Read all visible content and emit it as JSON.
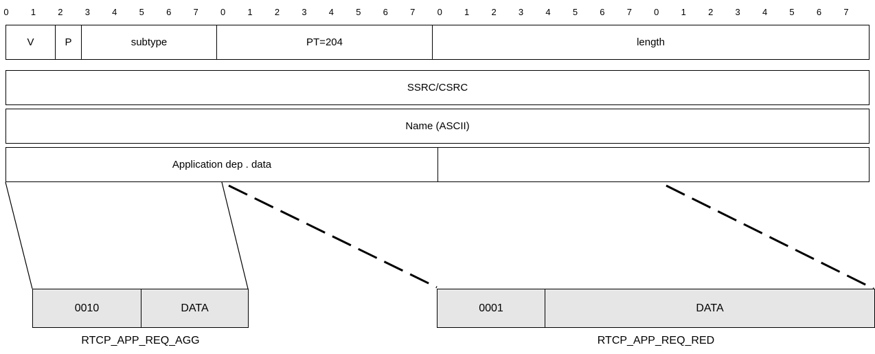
{
  "bit_numbers": [
    "0",
    "1",
    "2",
    "3",
    "4",
    "5",
    "6",
    "7",
    "0",
    "1",
    "2",
    "3",
    "4",
    "5",
    "6",
    "7",
    "0",
    "1",
    "2",
    "3",
    "4",
    "5",
    "6",
    "7",
    "0",
    "1",
    "2",
    "3",
    "4",
    "5",
    "6",
    "7"
  ],
  "header_row": {
    "v": "V",
    "p": "P",
    "subtype": "subtype",
    "pt": "PT=204",
    "length": "length"
  },
  "ssrc_row": {
    "label": "SSRC/CSRC"
  },
  "name_row": {
    "label": "Name (ASCII)"
  },
  "app_row": {
    "label": "Application dep . data",
    "right": ""
  },
  "agg_packet": {
    "code": "0010",
    "data": "DATA",
    "caption": "RTCP_APP_REQ_AGG"
  },
  "red_packet": {
    "code": "0001",
    "data": "DATA",
    "caption": "RTCP_APP_REQ_RED"
  },
  "colors": {
    "subbox_fill": "#e6e6e6",
    "line": "#000000"
  }
}
